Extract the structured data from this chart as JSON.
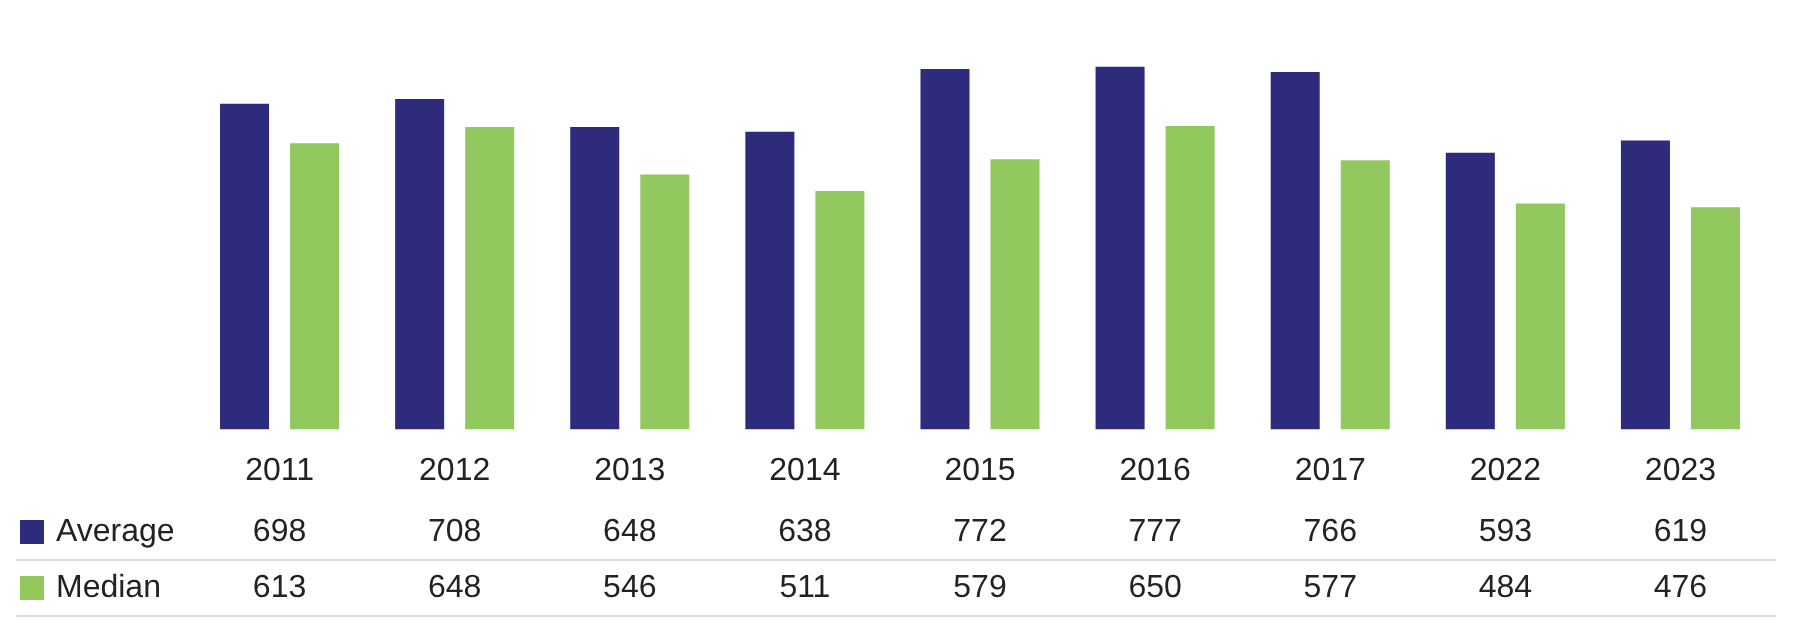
{
  "chart_data": {
    "type": "bar",
    "categories": [
      "2011",
      "2012",
      "2013",
      "2014",
      "2015",
      "2016",
      "2017",
      "2022",
      "2023"
    ],
    "series": [
      {
        "name": "Average",
        "color": "#2e2a7c",
        "values": [
          698,
          708,
          648,
          638,
          772,
          777,
          766,
          593,
          619
        ]
      },
      {
        "name": "Median",
        "color": "#92c95f",
        "values": [
          613,
          648,
          546,
          511,
          579,
          650,
          577,
          484,
          476
        ]
      }
    ],
    "data_labels": true,
    "legend": "bottom left"
  }
}
